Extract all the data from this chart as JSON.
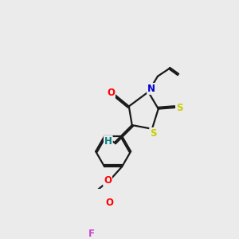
{
  "background_color": "#ebebeb",
  "bond_color": "#1a1a1a",
  "atom_colors": {
    "O": "#ff0000",
    "N": "#0000cc",
    "S": "#cccc00",
    "F": "#cc44cc",
    "H": "#008080",
    "C": "#1a1a1a"
  },
  "figsize": [
    3.0,
    3.0
  ],
  "dpi": 100,
  "lw": 1.6,
  "font_size": 8.5
}
